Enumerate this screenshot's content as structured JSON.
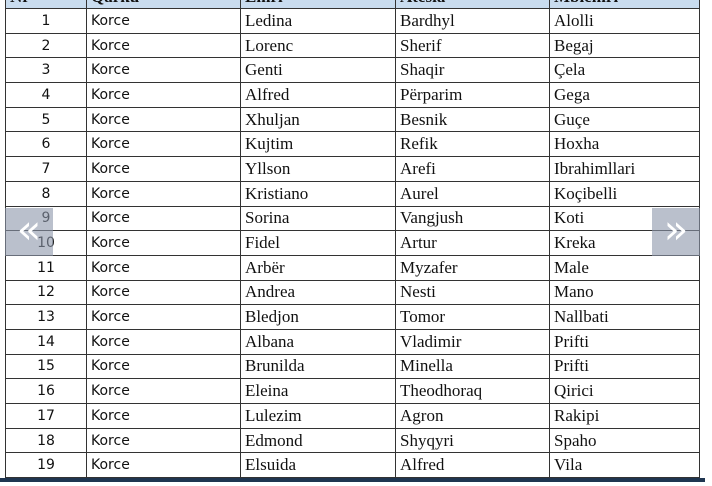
{
  "table": {
    "headers": [
      "Nr",
      "Qarku",
      "Emri",
      "Atesia",
      "Mbiemri"
    ],
    "rows": [
      [
        "1",
        "Korce",
        "Ledina",
        "Bardhyl",
        "Alolli"
      ],
      [
        "2",
        "Korce",
        "Lorenc",
        "Sherif",
        "Begaj"
      ],
      [
        "3",
        "Korce",
        "Genti",
        "Shaqir",
        "Çela"
      ],
      [
        "4",
        "Korce",
        "Alfred",
        "Përparim",
        "Gega"
      ],
      [
        "5",
        "Korce",
        "Xhuljan",
        "Besnik",
        "Guçe"
      ],
      [
        "6",
        "Korce",
        "Kujtim",
        "Refik",
        "Hoxha"
      ],
      [
        "7",
        "Korce",
        "Yllson",
        "Arefi",
        "Ibrahimllari"
      ],
      [
        "8",
        "Korce",
        "Kristiano",
        "Aurel",
        "Koçibelli"
      ],
      [
        "9",
        "Korce",
        "Sorina",
        "Vangjush",
        "Koti"
      ],
      [
        "10",
        "Korce",
        "Fidel",
        "Artur",
        "Kreka"
      ],
      [
        "11",
        "Korce",
        "Arbër",
        "Myzafer",
        "Male"
      ],
      [
        "12",
        "Korce",
        "Andrea",
        "Nesti",
        "Mano"
      ],
      [
        "13",
        "Korce",
        "Bledjon",
        "Tomor",
        "Nallbati"
      ],
      [
        "14",
        "Korce",
        "Albana",
        "Vladimir",
        "Prifti"
      ],
      [
        "15",
        "Korce",
        "Brunilda",
        "Minella",
        "Prifti"
      ],
      [
        "16",
        "Korce",
        "Eleina",
        "Theodhoraq",
        "Qirici"
      ],
      [
        "17",
        "Korce",
        "Lulezim",
        "Agron",
        "Rakipi"
      ],
      [
        "18",
        "Korce",
        "Edmond",
        "Shyqyri",
        "Spaho"
      ],
      [
        "19",
        "Korce",
        "Elsuida",
        "Alfred",
        "Vila"
      ]
    ]
  },
  "nav": {
    "prev": "«",
    "next": "»"
  },
  "colors": {
    "header_bg": "#c9dcef",
    "bottom_bar": "#1f3550"
  }
}
